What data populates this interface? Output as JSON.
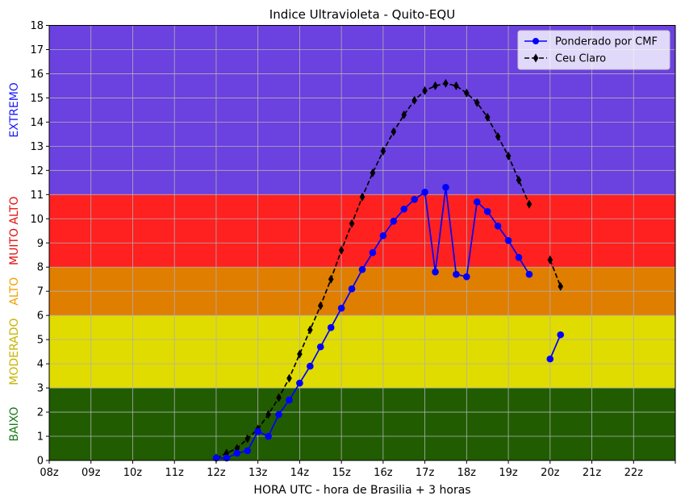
{
  "chart_data": {
    "type": "line",
    "title": "Indice Ultravioleta - Quito-EQU",
    "xlabel": "HORA UTC - hora de Brasilia + 3 horas",
    "ylabel": "",
    "xlim": [
      8,
      23
    ],
    "ylim": [
      0,
      18
    ],
    "x_ticks": [
      8,
      9,
      10,
      11,
      12,
      13,
      14,
      15,
      16,
      17,
      18,
      19,
      20,
      21,
      22
    ],
    "x_tick_labels": [
      "08z",
      "09z",
      "10z",
      "11z",
      "12z",
      "13z",
      "14z",
      "15z",
      "16z",
      "17z",
      "18z",
      "19z",
      "20z",
      "21z",
      "22z"
    ],
    "y_ticks": [
      0,
      1,
      2,
      3,
      4,
      5,
      6,
      7,
      8,
      9,
      10,
      11,
      12,
      13,
      14,
      15,
      16,
      17,
      18
    ],
    "y_tick_labels": [
      "0",
      "1",
      "2",
      "3",
      "4",
      "5",
      "6",
      "7",
      "8",
      "9",
      "10",
      "11",
      "12",
      "13",
      "14",
      "15",
      "16",
      "17",
      "18"
    ],
    "grid": true,
    "legend_position": "top-right",
    "bands": [
      {
        "label": "BAIXO",
        "from": 0,
        "to": 3,
        "color": "#215c00",
        "label_color": "#1a7a1a"
      },
      {
        "label": "MODERADO",
        "from": 3,
        "to": 6,
        "color": "#e0dc00",
        "label_color": "#c8b400"
      },
      {
        "label": "ALTO",
        "from": 6,
        "to": 8,
        "color": "#e07e00",
        "label_color": "#f0a000"
      },
      {
        "label": "MUITO ALTO",
        "from": 8,
        "to": 11,
        "color": "#ff2020",
        "label_color": "#e01010"
      },
      {
        "label": "EXTREMO",
        "from": 11,
        "to": 18,
        "color": "#6b41e0",
        "label_color": "#1a1aff"
      }
    ],
    "series": [
      {
        "name": "Ponderado por CMF",
        "color": "#0000ff",
        "line_style": "solid",
        "marker": "circle",
        "segments": [
          {
            "x": [
              12.0,
              12.25,
              12.5,
              12.75,
              13.0,
              13.25,
              13.5,
              13.75,
              14.0,
              14.25,
              14.5,
              14.75,
              15.0,
              15.25,
              15.5,
              15.75,
              16.0,
              16.25,
              16.5,
              16.75,
              17.0,
              17.25,
              17.5,
              17.75,
              18.0,
              18.25,
              18.5,
              18.75,
              19.0,
              19.25,
              19.5
            ],
            "y": [
              0.1,
              0.1,
              0.3,
              0.4,
              1.2,
              1.0,
              1.9,
              2.5,
              3.2,
              3.9,
              4.7,
              5.5,
              6.3,
              7.1,
              7.9,
              8.6,
              9.3,
              9.9,
              10.4,
              10.8,
              11.1,
              7.8,
              11.3,
              7.7,
              7.6,
              10.7,
              10.3,
              9.7,
              9.1,
              8.4,
              7.7
            ]
          },
          {
            "x": [
              20.0,
              20.25
            ],
            "y": [
              4.2,
              5.2
            ]
          }
        ]
      },
      {
        "name": "Ceu Claro",
        "color": "#000000",
        "line_style": "dashed",
        "marker": "diamond",
        "segments": [
          {
            "x": [
              12.0,
              12.25,
              12.5,
              12.75,
              13.0,
              13.25,
              13.5,
              13.75,
              14.0,
              14.25,
              14.5,
              14.75,
              15.0,
              15.25,
              15.5,
              15.75,
              16.0,
              16.25,
              16.5,
              16.75,
              17.0,
              17.25,
              17.5,
              17.75,
              18.0,
              18.25,
              18.5,
              18.75,
              19.0,
              19.25,
              19.5
            ],
            "y": [
              0.1,
              0.3,
              0.5,
              0.9,
              1.3,
              1.9,
              2.6,
              3.4,
              4.4,
              5.4,
              6.4,
              7.5,
              8.7,
              9.8,
              10.9,
              11.9,
              12.8,
              13.6,
              14.3,
              14.9,
              15.3,
              15.5,
              15.6,
              15.5,
              15.2,
              14.8,
              14.2,
              13.4,
              12.6,
              11.6,
              10.6
            ]
          },
          {
            "x": [
              20.0,
              20.25
            ],
            "y": [
              8.3,
              7.2
            ]
          }
        ]
      }
    ]
  }
}
